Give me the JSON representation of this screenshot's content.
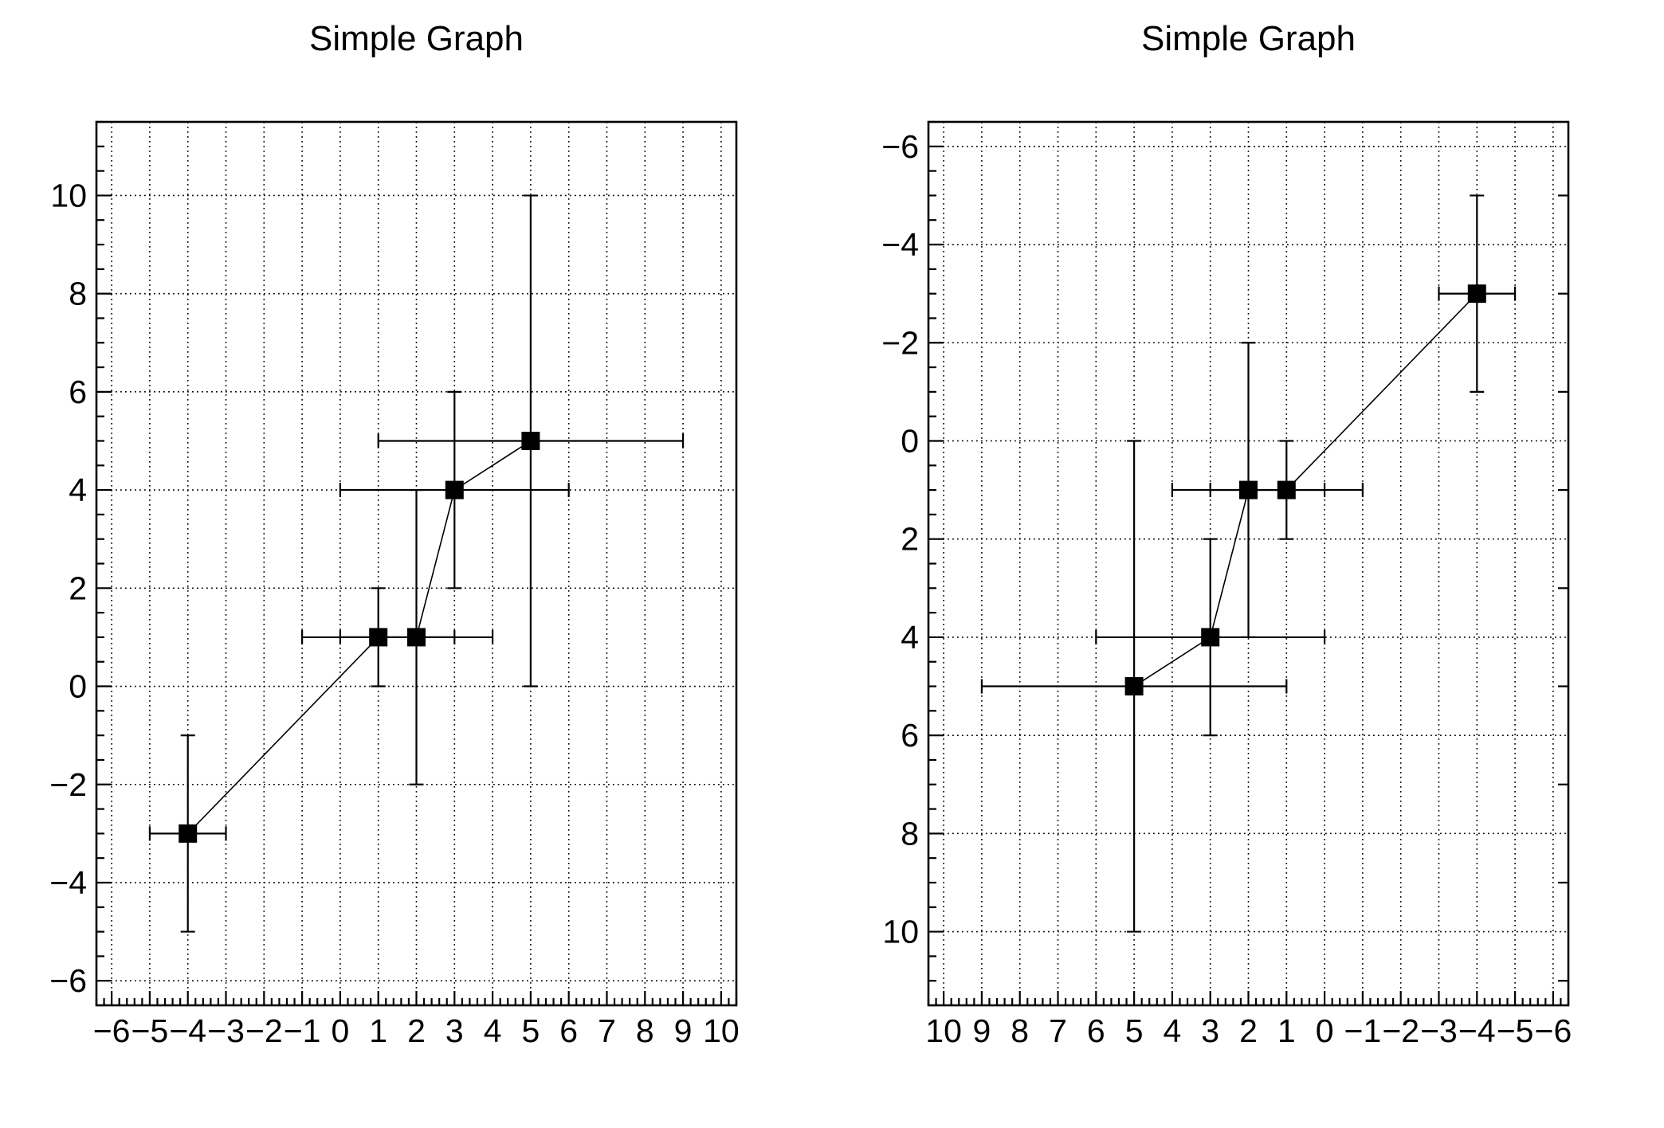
{
  "page": {
    "background": "#ffffff",
    "foreground": "#000000"
  },
  "chart_data": [
    {
      "type": "scatter",
      "title": "Simple Graph",
      "draw_style": "markers+line+errorbars",
      "marker": "filled-square",
      "marker_color": "#000000",
      "line_color": "#000000",
      "grid": true,
      "legend": "none",
      "points": [
        {
          "x": -4,
          "y": -3,
          "ex": 1,
          "ey": 2
        },
        {
          "x": 1,
          "y": 1,
          "ex": 2,
          "ey": 1
        },
        {
          "x": 2,
          "y": 1,
          "ex": 2,
          "ey": 3
        },
        {
          "x": 3,
          "y": 4,
          "ex": 3,
          "ey": 2
        },
        {
          "x": 5,
          "y": 5,
          "ex": 4,
          "ey": 5
        }
      ],
      "xlim": [
        -6.4,
        10.4
      ],
      "ylim": [
        -6.5,
        11.5
      ],
      "x_reversed": false,
      "y_reversed": false,
      "x_minor_step": 0.2,
      "y_minor_step": 0.5,
      "x_ticks": [
        {
          "v": -6,
          "label": "−6"
        },
        {
          "v": -5,
          "label": "−5"
        },
        {
          "v": -4,
          "label": "−4"
        },
        {
          "v": -3,
          "label": "−3"
        },
        {
          "v": -2,
          "label": "−2"
        },
        {
          "v": -1,
          "label": "−1"
        },
        {
          "v": 0,
          "label": "0"
        },
        {
          "v": 1,
          "label": "1"
        },
        {
          "v": 2,
          "label": "2"
        },
        {
          "v": 3,
          "label": "3"
        },
        {
          "v": 4,
          "label": "4"
        },
        {
          "v": 5,
          "label": "5"
        },
        {
          "v": 6,
          "label": "6"
        },
        {
          "v": 7,
          "label": "7"
        },
        {
          "v": 8,
          "label": "8"
        },
        {
          "v": 9,
          "label": "9"
        },
        {
          "v": 10,
          "label": "10"
        }
      ],
      "y_ticks": [
        {
          "v": -6,
          "label": "−6"
        },
        {
          "v": -4,
          "label": "−4"
        },
        {
          "v": -2,
          "label": "−2"
        },
        {
          "v": 0,
          "label": "0"
        },
        {
          "v": 2,
          "label": "2"
        },
        {
          "v": 4,
          "label": "4"
        },
        {
          "v": 6,
          "label": "6"
        },
        {
          "v": 8,
          "label": "8"
        },
        {
          "v": 10,
          "label": "10"
        }
      ],
      "extra_right_edge_ticks": []
    },
    {
      "type": "scatter",
      "title": "Simple Graph",
      "draw_style": "markers+line+errorbars",
      "marker": "filled-square",
      "marker_color": "#000000",
      "line_color": "#000000",
      "grid": true,
      "legend": "none",
      "points": [
        {
          "x": -4,
          "y": -3,
          "ex": 1,
          "ey": 2
        },
        {
          "x": 1,
          "y": 1,
          "ex": 2,
          "ey": 1
        },
        {
          "x": 2,
          "y": 1,
          "ex": 2,
          "ey": 3
        },
        {
          "x": 3,
          "y": 4,
          "ex": 3,
          "ey": 2
        },
        {
          "x": 5,
          "y": 5,
          "ex": 4,
          "ey": 5
        }
      ],
      "xlim": [
        -6.4,
        10.4
      ],
      "ylim": [
        -6.5,
        11.5
      ],
      "x_reversed": true,
      "y_reversed": true,
      "x_minor_step": 0.2,
      "y_minor_step": 0.5,
      "x_ticks": [
        {
          "v": -6,
          "label": "−6"
        },
        {
          "v": -5,
          "label": "−5"
        },
        {
          "v": -4,
          "label": "−4"
        },
        {
          "v": -3,
          "label": "−3"
        },
        {
          "v": -2,
          "label": "−2"
        },
        {
          "v": -1,
          "label": "−1"
        },
        {
          "v": 0,
          "label": "0"
        },
        {
          "v": 1,
          "label": "1"
        },
        {
          "v": 2,
          "label": "2"
        },
        {
          "v": 3,
          "label": "3"
        },
        {
          "v": 4,
          "label": "4"
        },
        {
          "v": 5,
          "label": "5"
        },
        {
          "v": 6,
          "label": "6"
        },
        {
          "v": 7,
          "label": "7"
        },
        {
          "v": 8,
          "label": "8"
        },
        {
          "v": 9,
          "label": "9"
        },
        {
          "v": 10,
          "label": "10"
        }
      ],
      "y_ticks": [
        {
          "v": -6,
          "label": "−6"
        },
        {
          "v": -4,
          "label": "−4"
        },
        {
          "v": -2,
          "label": "−2"
        },
        {
          "v": 0,
          "label": "0"
        },
        {
          "v": 2,
          "label": "2"
        },
        {
          "v": 4,
          "label": "4"
        },
        {
          "v": 6,
          "label": "6"
        },
        {
          "v": 8,
          "label": "8"
        },
        {
          "v": 10,
          "label": "10"
        }
      ],
      "extra_right_edge_ticks": [
        -5,
        -3,
        -1,
        1,
        3,
        5,
        7,
        9,
        11
      ]
    }
  ]
}
